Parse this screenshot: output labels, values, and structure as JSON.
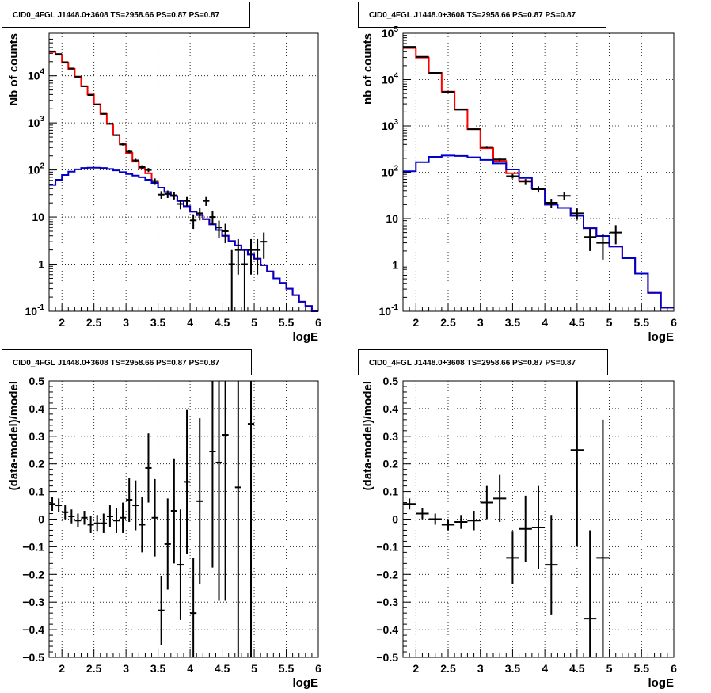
{
  "colors": {
    "total_model": "#ff0000",
    "component_model": "#0000cc",
    "data": "#000000",
    "grid": "#000000"
  },
  "chart_data": [
    {
      "type": "line",
      "title": "CID0_4FGL J1448.0+3608 TS=2958.66 PS=0.87 PS=0.87",
      "xlabel": "logE",
      "ylabel": "Nb of counts",
      "xlim": [
        1.8,
        6.0
      ],
      "ylim": [
        0.1,
        80000
      ],
      "log_y": true,
      "grid": true,
      "x_ticks": [
        2,
        2.5,
        3,
        3.5,
        4,
        4.5,
        5,
        5.5,
        6
      ],
      "x_tick_labels": [
        "2",
        "2.5",
        "3",
        "3.5",
        "4",
        "4.5",
        "5",
        "5.5",
        "6"
      ],
      "y_ticks": [
        0.1,
        1,
        10,
        100,
        1000,
        10000
      ],
      "y_tick_labels": [
        {
          "base": "10",
          "exp": "-1"
        },
        {
          "base": "1",
          "exp": ""
        },
        {
          "base": "10",
          "exp": ""
        },
        {
          "base": "10",
          "exp": "2"
        },
        {
          "base": "10",
          "exp": "3"
        },
        {
          "base": "10",
          "exp": "4"
        }
      ],
      "bin_edges": [
        1.8,
        1.9,
        2.0,
        2.1,
        2.2,
        2.3,
        2.4,
        2.5,
        2.6,
        2.7,
        2.8,
        2.9,
        3.0,
        3.1,
        3.2,
        3.3,
        3.4,
        3.5,
        3.6,
        3.7,
        3.8,
        3.9,
        4.0,
        4.1,
        4.2,
        4.3,
        4.4,
        4.5,
        4.6,
        4.7,
        4.8,
        4.9,
        5.0,
        5.1,
        5.2,
        5.3,
        5.4,
        5.5,
        5.6,
        5.7,
        5.8,
        5.9,
        6.0
      ],
      "series": [
        {
          "name": "",
          "style": "step",
          "color": "#ff0000",
          "values": [
            32000,
            28000,
            19000,
            14000,
            9500,
            6000,
            4000,
            2500,
            1550,
            950,
            550,
            350,
            230,
            150,
            110,
            85,
            58,
            42,
            34,
            28,
            22,
            17,
            13,
            11,
            9,
            7,
            5.3,
            4.0,
            3.1,
            2.5,
            2.0,
            1.6,
            1.3,
            0.95,
            0.7,
            0.5,
            0.4,
            0.3,
            0.22,
            0.16,
            0.13,
            0.1
          ]
        },
        {
          "name": "",
          "style": "step",
          "color": "#0000cc",
          "values": [
            48,
            62,
            78,
            92,
            103,
            110,
            112,
            112,
            110,
            105,
            98,
            90,
            82,
            76,
            70,
            62,
            53,
            42,
            34,
            28,
            22,
            17,
            13,
            11,
            9,
            7,
            5.3,
            4.0,
            3.1,
            2.5,
            2.0,
            1.6,
            1.3,
            0.95,
            0.7,
            0.5,
            0.4,
            0.3,
            0.22,
            0.16,
            0.13,
            0.1
          ]
        }
      ],
      "points": [
        {
          "x": 1.85,
          "y": 33000,
          "yerr": 180
        },
        {
          "x": 1.95,
          "y": 29000,
          "yerr": 170
        },
        {
          "x": 2.05,
          "y": 19500,
          "yerr": 140
        },
        {
          "x": 2.15,
          "y": 14300,
          "yerr": 120
        },
        {
          "x": 2.25,
          "y": 9600,
          "yerr": 98
        },
        {
          "x": 2.35,
          "y": 6000,
          "yerr": 78
        },
        {
          "x": 2.45,
          "y": 3900,
          "yerr": 62
        },
        {
          "x": 2.55,
          "y": 2450,
          "yerr": 50
        },
        {
          "x": 2.65,
          "y": 1560,
          "yerr": 40
        },
        {
          "x": 2.75,
          "y": 960,
          "yerr": 31
        },
        {
          "x": 2.85,
          "y": 550,
          "yerr": 23
        },
        {
          "x": 2.95,
          "y": 350,
          "yerr": 19
        },
        {
          "x": 3.05,
          "y": 245,
          "yerr": 16
        },
        {
          "x": 3.15,
          "y": 160,
          "yerr": 13
        },
        {
          "x": 3.25,
          "y": 115,
          "yerr": 11
        },
        {
          "x": 3.35,
          "y": 100,
          "yerr": 10
        },
        {
          "x": 3.45,
          "y": 58,
          "yerr": 8
        },
        {
          "x": 3.55,
          "y": 30,
          "yerr": 5.5
        },
        {
          "x": 3.65,
          "y": 31,
          "yerr": 5.6
        },
        {
          "x": 3.75,
          "y": 29,
          "yerr": 5.4
        },
        {
          "x": 3.85,
          "y": 19,
          "yerr": 4.4
        },
        {
          "x": 3.95,
          "y": 22,
          "yerr": 4.7
        },
        {
          "x": 4.05,
          "y": 8.5,
          "yerr": 2.9
        },
        {
          "x": 4.15,
          "y": 12,
          "yerr": 3.5
        },
        {
          "x": 4.25,
          "y": 22,
          "yerr": 4.7
        },
        {
          "x": 4.35,
          "y": 10,
          "yerr": 3.2
        },
        {
          "x": 4.45,
          "y": 6,
          "yerr": 2.4
        },
        {
          "x": 4.55,
          "y": 5,
          "yerr": 2.2
        },
        {
          "x": 4.65,
          "y": 1,
          "yerr": 0.99
        },
        {
          "x": 4.75,
          "y": 2,
          "yerr": 1.4
        },
        {
          "x": 4.85,
          "y": 1,
          "yerr": 0.99
        },
        {
          "x": 4.95,
          "y": 2,
          "yerr": 1.4
        },
        {
          "x": 5.05,
          "y": 2,
          "yerr": 1.4
        },
        {
          "x": 5.15,
          "y": 3,
          "yerr": 1.7
        }
      ]
    },
    {
      "type": "line",
      "title": "CID0_4FGL J1448.0+3608 TS=2958.66 PS=0.87 PS=0.87",
      "xlabel": "logE",
      "ylabel": "nb of counts",
      "xlim": [
        1.8,
        6.0
      ],
      "ylim": [
        0.1,
        100000
      ],
      "log_y": true,
      "grid": true,
      "x_ticks": [
        2,
        2.5,
        3,
        3.5,
        4,
        4.5,
        5,
        5.5,
        6
      ],
      "x_tick_labels": [
        "2",
        "2.5",
        "3",
        "3.5",
        "4",
        "4.5",
        "5",
        "5.5",
        "6"
      ],
      "y_ticks": [
        0.1,
        1,
        10,
        100,
        1000,
        10000,
        100000
      ],
      "y_tick_labels": [
        {
          "base": "10",
          "exp": "-1"
        },
        {
          "base": "1",
          "exp": ""
        },
        {
          "base": "10",
          "exp": ""
        },
        {
          "base": "10",
          "exp": "2"
        },
        {
          "base": "10",
          "exp": "3"
        },
        {
          "base": "10",
          "exp": "4"
        },
        {
          "base": "10",
          "exp": "5"
        }
      ],
      "bin_edges": [
        1.8,
        2.0,
        2.2,
        2.4,
        2.6,
        2.8,
        3.0,
        3.2,
        3.4,
        3.6,
        3.8,
        4.0,
        4.2,
        4.4,
        4.6,
        4.8,
        5.0,
        5.2,
        5.4,
        5.6,
        5.8,
        6.0
      ],
      "series": [
        {
          "name": "",
          "style": "step",
          "color": "#ff0000",
          "values": [
            48000,
            30000,
            14000,
            5500,
            2300,
            850,
            330,
            175,
            95,
            65,
            44,
            20,
            17,
            11.5,
            6.2,
            4.2,
            2.5,
            1.4,
            0.65,
            0.25,
            0.12
          ]
        },
        {
          "name": "",
          "style": "step",
          "color": "#0000cc",
          "values": [
            105,
            165,
            215,
            230,
            225,
            210,
            185,
            155,
            115,
            75,
            44,
            20,
            17,
            11.5,
            6.2,
            4.2,
            2.5,
            1.4,
            0.65,
            0.25,
            0.12
          ]
        }
      ],
      "points": [
        {
          "x": 1.9,
          "y": 51000,
          "yerr": 230
        },
        {
          "x": 2.1,
          "y": 31000,
          "yerr": 180
        },
        {
          "x": 2.3,
          "y": 14000,
          "yerr": 120
        },
        {
          "x": 2.5,
          "y": 5400,
          "yerr": 73
        },
        {
          "x": 2.7,
          "y": 2250,
          "yerr": 47
        },
        {
          "x": 2.9,
          "y": 850,
          "yerr": 29
        },
        {
          "x": 3.1,
          "y": 350,
          "yerr": 19
        },
        {
          "x": 3.3,
          "y": 190,
          "yerr": 14
        },
        {
          "x": 3.5,
          "y": 82,
          "yerr": 9
        },
        {
          "x": 3.7,
          "y": 63,
          "yerr": 8
        },
        {
          "x": 3.9,
          "y": 43,
          "yerr": 6.5
        },
        {
          "x": 4.1,
          "y": 22,
          "yerr": 4.7
        },
        {
          "x": 4.3,
          "y": 31,
          "yerr": 5.6
        },
        {
          "x": 4.5,
          "y": 13,
          "yerr": 3.6
        },
        {
          "x": 4.7,
          "y": 4,
          "yerr": 2
        },
        {
          "x": 4.9,
          "y": 3,
          "yerr": 1.7
        },
        {
          "x": 5.1,
          "y": 5,
          "yerr": 2.2
        }
      ]
    },
    {
      "type": "scatter",
      "title": "CID0_4FGL J1448.0+3608 TS=2958.66 PS=0.87 PS=0.87",
      "xlabel": "logE",
      "ylabel": "(data-model)/model",
      "xlim": [
        1.8,
        6.0
      ],
      "ylim": [
        -0.5,
        0.5
      ],
      "log_y": false,
      "grid": true,
      "x_ticks": [
        2,
        2.5,
        3,
        3.5,
        4,
        4.5,
        5,
        5.5,
        6
      ],
      "x_tick_labels": [
        "2",
        "2.5",
        "3",
        "3.5",
        "4",
        "4.5",
        "5",
        "5.5",
        "6"
      ],
      "y_ticks": [
        -0.5,
        -0.4,
        -0.3,
        -0.2,
        -0.1,
        0,
        0.1,
        0.2,
        0.3,
        0.4,
        0.5
      ],
      "y_tick_labels": [
        "−0.5",
        "−0.4",
        "−0.3",
        "−0.2",
        "−0.1",
        "0",
        "0.1",
        "0.2",
        "0.3",
        "0.4",
        "0.5"
      ],
      "xerr": 0.05,
      "points": [
        {
          "x": 1.85,
          "y": 0.055,
          "yerr": 0.025
        },
        {
          "x": 1.95,
          "y": 0.05,
          "yerr": 0.025
        },
        {
          "x": 2.05,
          "y": 0.025,
          "yerr": 0.025
        },
        {
          "x": 2.15,
          "y": 0.01,
          "yerr": 0.025
        },
        {
          "x": 2.25,
          "y": -0.005,
          "yerr": 0.025
        },
        {
          "x": 2.35,
          "y": 0.005,
          "yerr": 0.025
        },
        {
          "x": 2.45,
          "y": -0.02,
          "yerr": 0.03
        },
        {
          "x": 2.55,
          "y": -0.015,
          "yerr": 0.03
        },
        {
          "x": 2.65,
          "y": -0.015,
          "yerr": 0.035
        },
        {
          "x": 2.75,
          "y": 0.01,
          "yerr": 0.04
        },
        {
          "x": 2.85,
          "y": -0.005,
          "yerr": 0.045
        },
        {
          "x": 2.95,
          "y": 0.005,
          "yerr": 0.055
        },
        {
          "x": 3.05,
          "y": 0.07,
          "yerr": 0.08
        },
        {
          "x": 3.15,
          "y": 0.05,
          "yerr": 0.09
        },
        {
          "x": 3.25,
          "y": -0.02,
          "yerr": 0.1
        },
        {
          "x": 3.35,
          "y": 0.185,
          "yerr": 0.125
        },
        {
          "x": 3.45,
          "y": 0.005,
          "yerr": 0.14
        },
        {
          "x": 3.55,
          "y": -0.33,
          "yerr": 0.125
        },
        {
          "x": 3.65,
          "y": -0.09,
          "yerr": 0.165
        },
        {
          "x": 3.75,
          "y": 0.03,
          "yerr": 0.19
        },
        {
          "x": 3.85,
          "y": -0.165,
          "yerr": 0.2
        },
        {
          "x": 3.95,
          "y": 0.135,
          "yerr": 0.26
        },
        {
          "x": 4.05,
          "y": -0.34,
          "yerr": 0.2
        },
        {
          "x": 4.15,
          "y": 0.065,
          "yerr": 0.3
        },
        {
          "x": 4.35,
          "y": 0.245,
          "yerr": 0.42
        },
        {
          "x": 4.45,
          "y": 0.205,
          "yerr": 0.5
        },
        {
          "x": 4.55,
          "y": 0.305,
          "yerr": 0.6
        },
        {
          "x": 4.75,
          "y": 0.115,
          "yerr": 0.9
        },
        {
          "x": 4.95,
          "y": 0.345,
          "yerr": 1.0
        }
      ]
    },
    {
      "type": "scatter",
      "title": "CID0_4FGL J1448.0+3608 TS=2958.66 PS=0.87 PS=0.87",
      "xlabel": "logE",
      "ylabel": "(data-model)/model",
      "xlim": [
        1.8,
        6.0
      ],
      "ylim": [
        -0.5,
        0.5
      ],
      "log_y": false,
      "grid": true,
      "x_ticks": [
        2,
        2.5,
        3,
        3.5,
        4,
        4.5,
        5,
        5.5,
        6
      ],
      "x_tick_labels": [
        "2",
        "2.5",
        "3",
        "3.5",
        "4",
        "4.5",
        "5",
        "5.5",
        "6"
      ],
      "y_ticks": [
        -0.5,
        -0.4,
        -0.3,
        -0.2,
        -0.1,
        0,
        0.1,
        0.2,
        0.3,
        0.4,
        0.5
      ],
      "y_tick_labels": [
        "−0.5",
        "−0.4",
        "−0.3",
        "−0.2",
        "−0.1",
        "0",
        "0.1",
        "0.2",
        "0.3",
        "0.4",
        "0.5"
      ],
      "xerr": 0.1,
      "points": [
        {
          "x": 1.9,
          "y": 0.055,
          "yerr": 0.02
        },
        {
          "x": 2.1,
          "y": 0.02,
          "yerr": 0.02
        },
        {
          "x": 2.3,
          "y": 0.0,
          "yerr": 0.02
        },
        {
          "x": 2.5,
          "y": -0.02,
          "yerr": 0.02
        },
        {
          "x": 2.7,
          "y": -0.01,
          "yerr": 0.025
        },
        {
          "x": 2.9,
          "y": -0.005,
          "yerr": 0.035
        },
        {
          "x": 3.1,
          "y": 0.06,
          "yerr": 0.06
        },
        {
          "x": 3.3,
          "y": 0.075,
          "yerr": 0.085
        },
        {
          "x": 3.5,
          "y": -0.14,
          "yerr": 0.095
        },
        {
          "x": 3.7,
          "y": -0.035,
          "yerr": 0.12
        },
        {
          "x": 3.9,
          "y": -0.03,
          "yerr": 0.15
        },
        {
          "x": 4.1,
          "y": -0.165,
          "yerr": 0.18
        },
        {
          "x": 4.5,
          "y": 0.25,
          "yerr": 0.35
        },
        {
          "x": 4.7,
          "y": -0.36,
          "yerr": 0.32
        },
        {
          "x": 4.9,
          "y": -0.14,
          "yerr": 0.5
        }
      ]
    }
  ]
}
